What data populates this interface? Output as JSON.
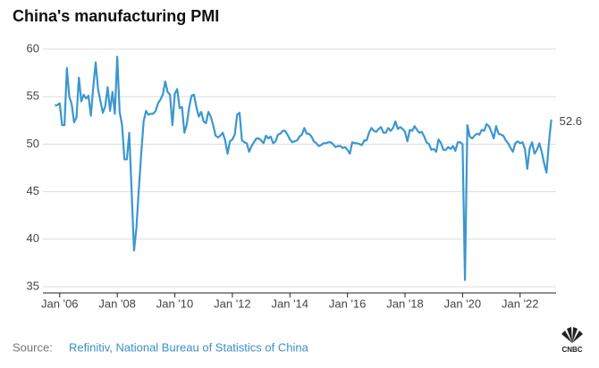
{
  "chart_data": {
    "type": "line",
    "title": "China's manufacturing PMI",
    "source_label": "Source:",
    "source": "Refinitiv, National Bureau of Statistics of China",
    "logo": "CNBC",
    "end_label": "52.6",
    "x": [
      "2005-11",
      "2005-12",
      "2006-01",
      "2006-02",
      "2006-03",
      "2006-04",
      "2006-05",
      "2006-06",
      "2006-07",
      "2006-08",
      "2006-09",
      "2006-10",
      "2006-11",
      "2006-12",
      "2007-01",
      "2007-02",
      "2007-03",
      "2007-04",
      "2007-05",
      "2007-06",
      "2007-07",
      "2007-08",
      "2007-09",
      "2007-10",
      "2007-11",
      "2007-12",
      "2008-01",
      "2008-02",
      "2008-03",
      "2008-04",
      "2008-05",
      "2008-06",
      "2008-07",
      "2008-08",
      "2008-09",
      "2008-10",
      "2008-11",
      "2008-12",
      "2009-01",
      "2009-02",
      "2009-03",
      "2009-04",
      "2009-05",
      "2009-06",
      "2009-07",
      "2009-08",
      "2009-09",
      "2009-10",
      "2009-11",
      "2009-12",
      "2010-01",
      "2010-02",
      "2010-03",
      "2010-04",
      "2010-05",
      "2010-06",
      "2010-07",
      "2010-08",
      "2010-09",
      "2010-10",
      "2010-11",
      "2010-12",
      "2011-01",
      "2011-02",
      "2011-03",
      "2011-04",
      "2011-05",
      "2011-06",
      "2011-07",
      "2011-08",
      "2011-09",
      "2011-10",
      "2011-11",
      "2011-12",
      "2012-01",
      "2012-02",
      "2012-03",
      "2012-04",
      "2012-05",
      "2012-06",
      "2012-07",
      "2012-08",
      "2012-09",
      "2012-10",
      "2012-11",
      "2012-12",
      "2013-01",
      "2013-02",
      "2013-03",
      "2013-04",
      "2013-05",
      "2013-06",
      "2013-07",
      "2013-08",
      "2013-09",
      "2013-10",
      "2013-11",
      "2013-12",
      "2014-01",
      "2014-02",
      "2014-03",
      "2014-04",
      "2014-05",
      "2014-06",
      "2014-07",
      "2014-08",
      "2014-09",
      "2014-10",
      "2014-11",
      "2014-12",
      "2015-01",
      "2015-02",
      "2015-03",
      "2015-04",
      "2015-05",
      "2015-06",
      "2015-07",
      "2015-08",
      "2015-09",
      "2015-10",
      "2015-11",
      "2015-12",
      "2016-01",
      "2016-02",
      "2016-03",
      "2016-04",
      "2016-05",
      "2016-06",
      "2016-07",
      "2016-08",
      "2016-09",
      "2016-10",
      "2016-11",
      "2016-12",
      "2017-01",
      "2017-02",
      "2017-03",
      "2017-04",
      "2017-05",
      "2017-06",
      "2017-07",
      "2017-08",
      "2017-09",
      "2017-10",
      "2017-11",
      "2017-12",
      "2018-01",
      "2018-02",
      "2018-03",
      "2018-04",
      "2018-05",
      "2018-06",
      "2018-07",
      "2018-08",
      "2018-09",
      "2018-10",
      "2018-11",
      "2018-12",
      "2019-01",
      "2019-02",
      "2019-03",
      "2019-04",
      "2019-05",
      "2019-06",
      "2019-07",
      "2019-08",
      "2019-09",
      "2019-10",
      "2019-11",
      "2019-12",
      "2020-01",
      "2020-02",
      "2020-03",
      "2020-04",
      "2020-05",
      "2020-06",
      "2020-07",
      "2020-08",
      "2020-09",
      "2020-10",
      "2020-11",
      "2020-12",
      "2021-01",
      "2021-02",
      "2021-03",
      "2021-04",
      "2021-05",
      "2021-06",
      "2021-07",
      "2021-08",
      "2021-09",
      "2021-10",
      "2021-11",
      "2021-12",
      "2022-01",
      "2022-02",
      "2022-03",
      "2022-04",
      "2022-05",
      "2022-06",
      "2022-07",
      "2022-08",
      "2022-09",
      "2022-10",
      "2022-11",
      "2022-12",
      "2023-01",
      "2023-02"
    ],
    "series": [
      {
        "name": "Manufacturing PMI",
        "color": "#3b97d0",
        "values": [
          54.1,
          54.1,
          54.3,
          52.0,
          52.0,
          58.0,
          55.0,
          54.2,
          52.3,
          52.8,
          57.0,
          54.5,
          55.2,
          54.8,
          55.1,
          53.0,
          56.0,
          58.6,
          55.8,
          54.5,
          53.3,
          54.0,
          56.0,
          53.5,
          55.5,
          53.2,
          59.2,
          53.4,
          52.0,
          48.4,
          48.4,
          51.2,
          45.0,
          38.8,
          41.2,
          45.3,
          49.0,
          52.4,
          53.5,
          53.1,
          53.2,
          53.2,
          53.5,
          54.3,
          54.7,
          55.2,
          56.6,
          55.5,
          55.2,
          52.0,
          55.3,
          55.8,
          53.8,
          53.9,
          51.2,
          52.1,
          53.9,
          55.1,
          55.2,
          53.9,
          52.9,
          53.4,
          52.4,
          52.2,
          53.4,
          52.9,
          52.0,
          50.9,
          50.7,
          50.9,
          51.2,
          50.4,
          49.0,
          50.3,
          50.5,
          51.0,
          53.1,
          53.3,
          50.4,
          50.2,
          50.1,
          49.2,
          49.8,
          50.2,
          50.6,
          50.6,
          50.4,
          50.1,
          50.9,
          50.6,
          50.8,
          50.1,
          50.3,
          51.0,
          51.1,
          51.4,
          51.4,
          51.0,
          50.5,
          50.2,
          50.3,
          50.4,
          50.8,
          51.0,
          51.7,
          51.1,
          51.1,
          50.8,
          50.3,
          50.1,
          49.8,
          49.9,
          50.1,
          50.1,
          50.2,
          50.2,
          50.0,
          49.7,
          49.8,
          49.8,
          49.6,
          49.7,
          49.4,
          49.0,
          50.2,
          50.1,
          50.1,
          50.0,
          49.9,
          50.4,
          50.4,
          51.2,
          51.7,
          51.4,
          51.3,
          51.6,
          51.8,
          51.2,
          51.2,
          51.7,
          51.4,
          51.7,
          52.4,
          51.6,
          51.8,
          51.6,
          51.3,
          50.3,
          51.5,
          51.4,
          51.9,
          51.5,
          51.2,
          51.3,
          50.8,
          50.2,
          50.0,
          49.4,
          49.5,
          49.2,
          50.5,
          50.1,
          49.4,
          49.4,
          49.7,
          49.5,
          49.8,
          49.3,
          50.2,
          50.2,
          50.0,
          35.7,
          52.0,
          50.8,
          50.6,
          50.9,
          51.1,
          51.0,
          51.5,
          51.4,
          52.1,
          51.9,
          51.3,
          50.6,
          51.9,
          51.1,
          51.0,
          50.9,
          50.4,
          50.1,
          49.6,
          49.2,
          50.1,
          50.3,
          50.1,
          50.2,
          49.5,
          47.4,
          49.6,
          50.2,
          49.0,
          49.4,
          50.1,
          49.2,
          48.0,
          47.0,
          50.1,
          52.6
        ]
      }
    ],
    "xlim": [
      "2005-06",
      "2023-04"
    ],
    "xticks": [
      {
        "value": "2006-01",
        "label": "Jan '06"
      },
      {
        "value": "2008-01",
        "label": "Jan '08"
      },
      {
        "value": "2010-01",
        "label": "Jan '10"
      },
      {
        "value": "2012-01",
        "label": "Jan '12"
      },
      {
        "value": "2014-01",
        "label": "Jan '14"
      },
      {
        "value": "2016-01",
        "label": "Jan '16"
      },
      {
        "value": "2018-01",
        "label": "Jan '18"
      },
      {
        "value": "2020-01",
        "label": "Jan '20"
      },
      {
        "value": "2022-01",
        "label": "Jan '22"
      }
    ],
    "ylim": [
      35,
      60
    ],
    "yticks": [
      35,
      40,
      45,
      50,
      55,
      60
    ],
    "grid": true
  }
}
